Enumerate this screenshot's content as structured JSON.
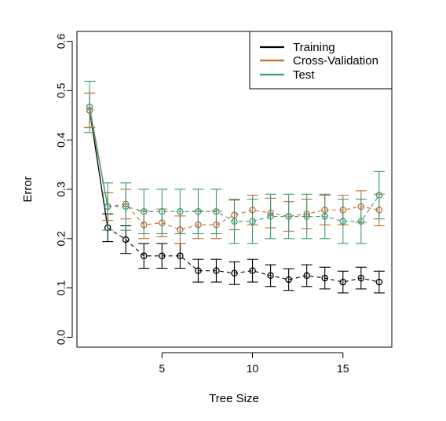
{
  "chart_data": {
    "type": "line",
    "title": "",
    "xlabel": "Tree Size",
    "ylabel": "Error",
    "xlim": [
      0.3,
      17.7
    ],
    "ylim": [
      -0.02,
      0.62
    ],
    "x_ticks": [
      5,
      10,
      15
    ],
    "y_ticks": [
      0.0,
      0.1,
      0.2,
      0.3,
      0.4,
      0.5,
      0.6
    ],
    "y_tick_labels": [
      "0.0",
      "0.1",
      "0.2",
      "0.3",
      "0.4",
      "0.5",
      "0.6"
    ],
    "legend_position": "top-right",
    "grid": false,
    "x": [
      1,
      2,
      3,
      4,
      5,
      6,
      7,
      8,
      9,
      10,
      11,
      12,
      13,
      14,
      15,
      16,
      17
    ],
    "series": [
      {
        "name": "Training",
        "color": "#000000",
        "values": [
          0.46,
          0.222,
          0.198,
          0.165,
          0.165,
          0.165,
          0.135,
          0.135,
          0.13,
          0.135,
          0.125,
          0.117,
          0.125,
          0.12,
          0.112,
          0.12,
          0.112
        ],
        "err": [
          0.035,
          0.028,
          0.028,
          0.025,
          0.025,
          0.025,
          0.023,
          0.023,
          0.023,
          0.023,
          0.022,
          0.022,
          0.022,
          0.022,
          0.022,
          0.022,
          0.022
        ]
      },
      {
        "name": "Cross-Validation",
        "color": "#c8692e",
        "values": [
          0.46,
          0.265,
          0.27,
          0.228,
          0.232,
          0.218,
          0.228,
          0.228,
          0.248,
          0.258,
          0.252,
          0.245,
          0.25,
          0.258,
          0.258,
          0.265,
          0.258
        ],
        "err": [
          0.035,
          0.028,
          0.03,
          0.028,
          0.028,
          0.028,
          0.028,
          0.028,
          0.03,
          0.03,
          0.03,
          0.03,
          0.03,
          0.03,
          0.03,
          0.032,
          0.032
        ]
      },
      {
        "name": "Test",
        "color": "#3c9a78",
        "values": [
          0.467,
          0.265,
          0.265,
          0.255,
          0.255,
          0.255,
          0.255,
          0.255,
          0.235,
          0.235,
          0.245,
          0.245,
          0.245,
          0.245,
          0.235,
          0.235,
          0.288
        ],
        "err": [
          0.052,
          0.048,
          0.048,
          0.045,
          0.045,
          0.045,
          0.045,
          0.045,
          0.045,
          0.045,
          0.045,
          0.045,
          0.045,
          0.045,
          0.045,
          0.045,
          0.048
        ]
      }
    ]
  }
}
